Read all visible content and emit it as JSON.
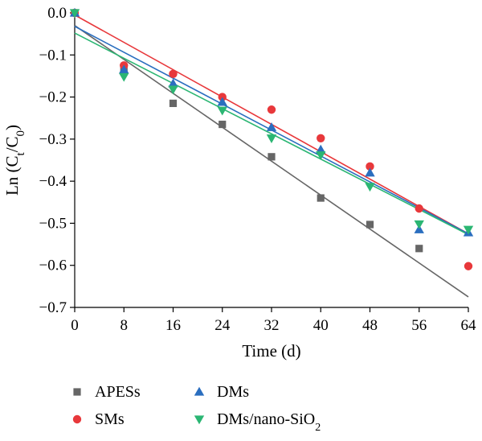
{
  "chart_data": {
    "type": "scatter",
    "xlabel": "Time (d)",
    "ylabel": "Ln (C_t/C_0)",
    "xlim": [
      0,
      64
    ],
    "ylim": [
      -0.7,
      0.0
    ],
    "xticks": [
      0,
      8,
      16,
      24,
      32,
      40,
      48,
      56,
      64
    ],
    "xtick_labels": [
      "0",
      "8",
      "16",
      "24",
      "32",
      "40",
      "48",
      "56",
      "64"
    ],
    "yticks": [
      0.0,
      -0.1,
      -0.2,
      -0.3,
      -0.4,
      -0.5,
      -0.6,
      -0.7
    ],
    "ytick_labels": [
      "0.0",
      "−0.1",
      "−0.2",
      "−0.3",
      "−0.4",
      "−0.5",
      "−0.6",
      "−0.7"
    ],
    "grid": false,
    "legend_position": "bottom",
    "series": [
      {
        "name": "APESs",
        "marker": "square",
        "color": "#666666",
        "x": [
          0,
          8,
          16,
          24,
          32,
          40,
          48,
          56
        ],
        "y": [
          0.0,
          -0.137,
          -0.215,
          -0.265,
          -0.342,
          -0.44,
          -0.503,
          -0.56
        ],
        "fit": [
          [
            0,
            -0.03
          ],
          [
            64,
            -0.675
          ]
        ]
      },
      {
        "name": "SMs",
        "marker": "circle",
        "color": "#e8383b",
        "x": [
          0,
          8,
          16,
          24,
          32,
          40,
          48,
          56,
          64
        ],
        "y": [
          0.0,
          -0.125,
          -0.145,
          -0.2,
          -0.23,
          -0.298,
          -0.365,
          -0.465,
          -0.602
        ],
        "fit": [
          [
            0,
            -0.005
          ],
          [
            64,
            -0.525
          ]
        ]
      },
      {
        "name": "DMs",
        "marker": "triangle-up",
        "color": "#2a6ebf",
        "x": [
          0,
          8,
          16,
          24,
          32,
          40,
          48,
          56,
          64
        ],
        "y": [
          0.0,
          -0.135,
          -0.168,
          -0.212,
          -0.272,
          -0.325,
          -0.38,
          -0.515,
          -0.522
        ],
        "fit": [
          [
            0,
            -0.032
          ],
          [
            64,
            -0.525
          ]
        ]
      },
      {
        "name": "DMs/nano-SiO2",
        "legend_base": "DMs/nano-SiO",
        "legend_sub": "2",
        "marker": "triangle-down",
        "color": "#2bb673",
        "x": [
          0,
          8,
          16,
          24,
          32,
          40,
          48,
          56,
          64
        ],
        "y": [
          0.0,
          -0.152,
          -0.182,
          -0.232,
          -0.298,
          -0.338,
          -0.413,
          -0.502,
          -0.515
        ],
        "fit": [
          [
            0,
            -0.048
          ],
          [
            64,
            -0.527
          ]
        ]
      }
    ]
  }
}
